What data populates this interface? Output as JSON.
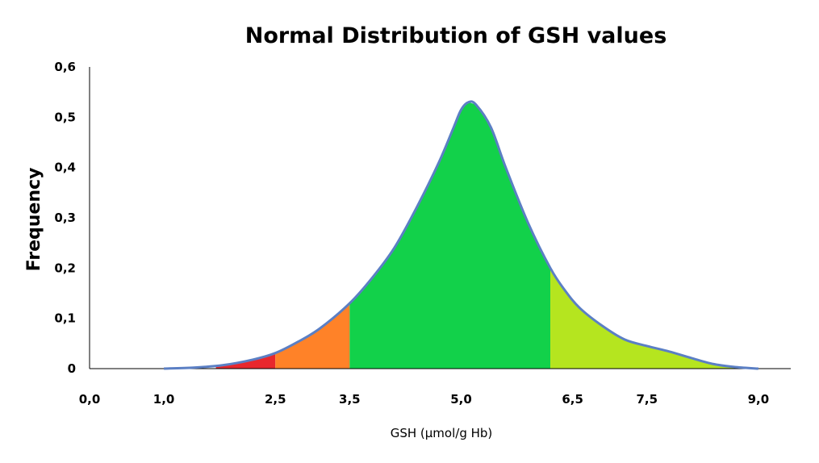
{
  "chart_data": {
    "type": "area",
    "title": "Normal Distribution of GSH values",
    "xlabel": "GSH (µmol/g Hb)",
    "ylabel": "Frequency",
    "xlim": [
      0,
      9.4
    ],
    "ylim": [
      0,
      0.6
    ],
    "x_ticks": [
      {
        "value": 0.0,
        "label": "0,0"
      },
      {
        "value": 1.0,
        "label": "1,0"
      },
      {
        "value": 2.5,
        "label": "2,5"
      },
      {
        "value": 3.5,
        "label": "3,5"
      },
      {
        "value": 5.0,
        "label": "5,0"
      },
      {
        "value": 6.5,
        "label": "6,5"
      },
      {
        "value": 7.5,
        "label": "7,5"
      },
      {
        "value": 9.0,
        "label": "9,0"
      }
    ],
    "y_ticks": [
      {
        "value": 0.0,
        "label": "0"
      },
      {
        "value": 0.1,
        "label": "0,1"
      },
      {
        "value": 0.2,
        "label": "0,2"
      },
      {
        "value": 0.3,
        "label": "0,3"
      },
      {
        "value": 0.4,
        "label": "0,4"
      },
      {
        "value": 0.5,
        "label": "0,5"
      },
      {
        "value": 0.6,
        "label": "0,6"
      }
    ],
    "grid": false,
    "legend": "none",
    "curve": {
      "x": [
        1.0,
        1.4,
        1.8,
        2.2,
        2.5,
        2.8,
        3.1,
        3.5,
        3.8,
        4.1,
        4.4,
        4.7,
        4.9,
        5.0,
        5.1,
        5.2,
        5.4,
        5.6,
        5.9,
        6.2,
        6.4,
        6.6,
        6.9,
        7.2,
        7.5,
        7.8,
        8.1,
        8.4,
        8.7,
        9.0
      ],
      "y": [
        0.0,
        0.002,
        0.007,
        0.018,
        0.031,
        0.053,
        0.08,
        0.13,
        0.18,
        0.24,
        0.32,
        0.41,
        0.48,
        0.515,
        0.53,
        0.525,
        0.48,
        0.4,
        0.29,
        0.2,
        0.155,
        0.12,
        0.085,
        0.058,
        0.045,
        0.034,
        0.021,
        0.009,
        0.003,
        0.0
      ]
    },
    "line_color": "#5b7fc4",
    "regions": [
      {
        "from": 1.7,
        "to": 2.5,
        "color": "#e8282d"
      },
      {
        "from": 2.5,
        "to": 3.5,
        "color": "#ff8228"
      },
      {
        "from": 3.5,
        "to": 6.2,
        "color": "#12d14a"
      },
      {
        "from": 6.2,
        "to": 9.0,
        "color": "#b5e51f"
      }
    ]
  }
}
